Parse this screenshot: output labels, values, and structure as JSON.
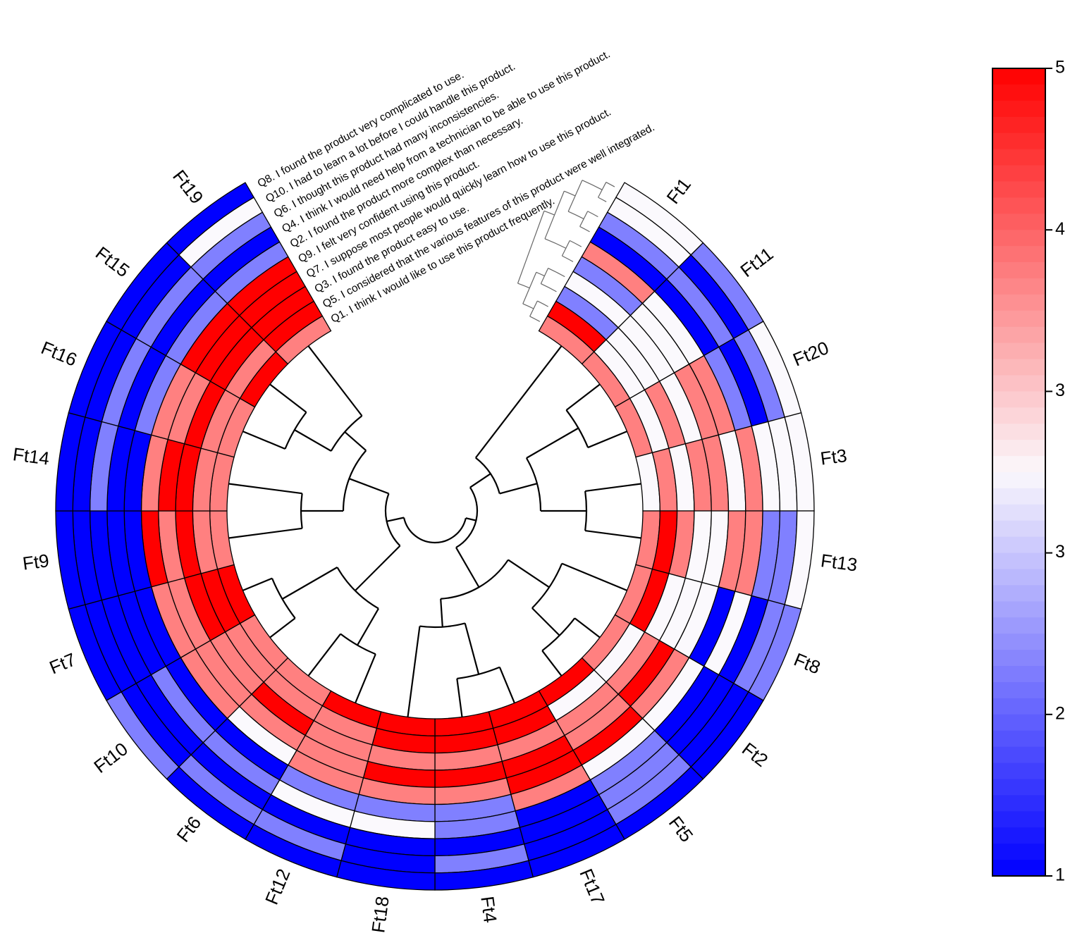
{
  "chart_data": {
    "type": "heatmap",
    "layout": "circular",
    "features": [
      "Ft1",
      "Ft11",
      "Ft20",
      "Ft3",
      "Ft13",
      "Ft8",
      "Ft2",
      "Ft5",
      "Ft17",
      "Ft4",
      "Ft18",
      "Ft12",
      "Ft6",
      "Ft10",
      "Ft7",
      "Ft9",
      "Ft14",
      "Ft16",
      "Ft15",
      "Ft19"
    ],
    "rings_inner_to_outer": [
      {
        "id": "Q1",
        "label": "Q1. I think I would like to use this product frequently."
      },
      {
        "id": "Q5",
        "label": "Q5. I considered that the various features of this product were well integrated."
      },
      {
        "id": "Q3",
        "label": "Q3. I found the product easy to use."
      },
      {
        "id": "Q7",
        "label": "Q7. I suppose most people would quickly learn how to use this product."
      },
      {
        "id": "Q9",
        "label": "Q9. I felt very confident using this product."
      },
      {
        "id": "Q2",
        "label": "Q2. I found the product more complex than necessary."
      },
      {
        "id": "Q4",
        "label": "Q4. I think I would need help from a technician to be able to use this product."
      },
      {
        "id": "Q6",
        "label": "Q6. I thought this product had many inconsistencies."
      },
      {
        "id": "Q10",
        "label": "Q10. I had to learn a lot before I could handle this product."
      },
      {
        "id": "Q8",
        "label": "Q8. I found the product very complicated to use."
      }
    ],
    "values": [
      [
        4,
        5,
        2,
        3,
        2,
        4,
        1,
        2,
        3,
        3
      ],
      [
        4,
        3,
        3,
        3,
        3,
        3,
        1,
        2,
        1,
        2
      ],
      [
        4,
        3,
        4,
        3,
        4,
        4,
        2,
        1,
        2,
        3
      ],
      [
        3,
        4,
        3,
        4,
        4,
        3,
        4,
        3,
        3,
        3
      ],
      [
        4,
        5,
        4,
        3,
        3,
        4,
        4,
        2,
        2,
        3
      ],
      [
        4,
        5,
        3,
        3,
        3,
        1,
        3,
        1,
        2,
        2
      ],
      [
        4,
        3,
        4,
        5,
        4,
        3,
        1,
        1,
        1,
        1
      ],
      [
        5,
        3,
        4,
        4,
        5,
        3,
        2,
        2,
        2,
        1
      ],
      [
        5,
        5,
        4,
        5,
        5,
        4,
        1,
        1,
        1,
        1
      ],
      [
        5,
        5,
        4,
        5,
        4,
        2,
        2,
        1,
        2,
        1
      ],
      [
        5,
        5,
        4,
        5,
        4,
        2,
        3,
        1,
        1,
        1
      ],
      [
        5,
        4,
        4,
        4,
        4,
        2,
        3,
        1,
        2,
        1
      ],
      [
        4,
        4,
        5,
        4,
        3,
        1,
        2,
        1,
        2,
        1
      ],
      [
        4,
        4,
        4,
        4,
        4,
        1,
        2,
        1,
        1,
        2
      ],
      [
        5,
        5,
        5,
        4,
        4,
        1,
        1,
        1,
        1,
        1
      ],
      [
        4,
        4,
        5,
        4,
        5,
        1,
        1,
        1,
        1,
        1
      ],
      [
        4,
        4,
        5,
        5,
        4,
        1,
        1,
        2,
        1,
        1
      ],
      [
        4,
        4,
        5,
        4,
        4,
        2,
        1,
        2,
        1,
        1
      ],
      [
        5,
        4,
        5,
        5,
        5,
        2,
        1,
        2,
        1,
        1
      ],
      [
        4,
        5,
        5,
        5,
        5,
        2,
        1,
        2,
        3,
        1
      ]
    ],
    "value_range": [
      1,
      5
    ],
    "colorbar": {
      "tick_labels": [
        "5",
        "4",
        "3",
        "3",
        "2",
        "1"
      ],
      "low_color": "#0000ff",
      "mid_color": "#fbf8fc",
      "high_color": "#ff0000",
      "placement": "right"
    },
    "dendrograms": [
      "features (inner)",
      "questions (top gap)"
    ]
  }
}
